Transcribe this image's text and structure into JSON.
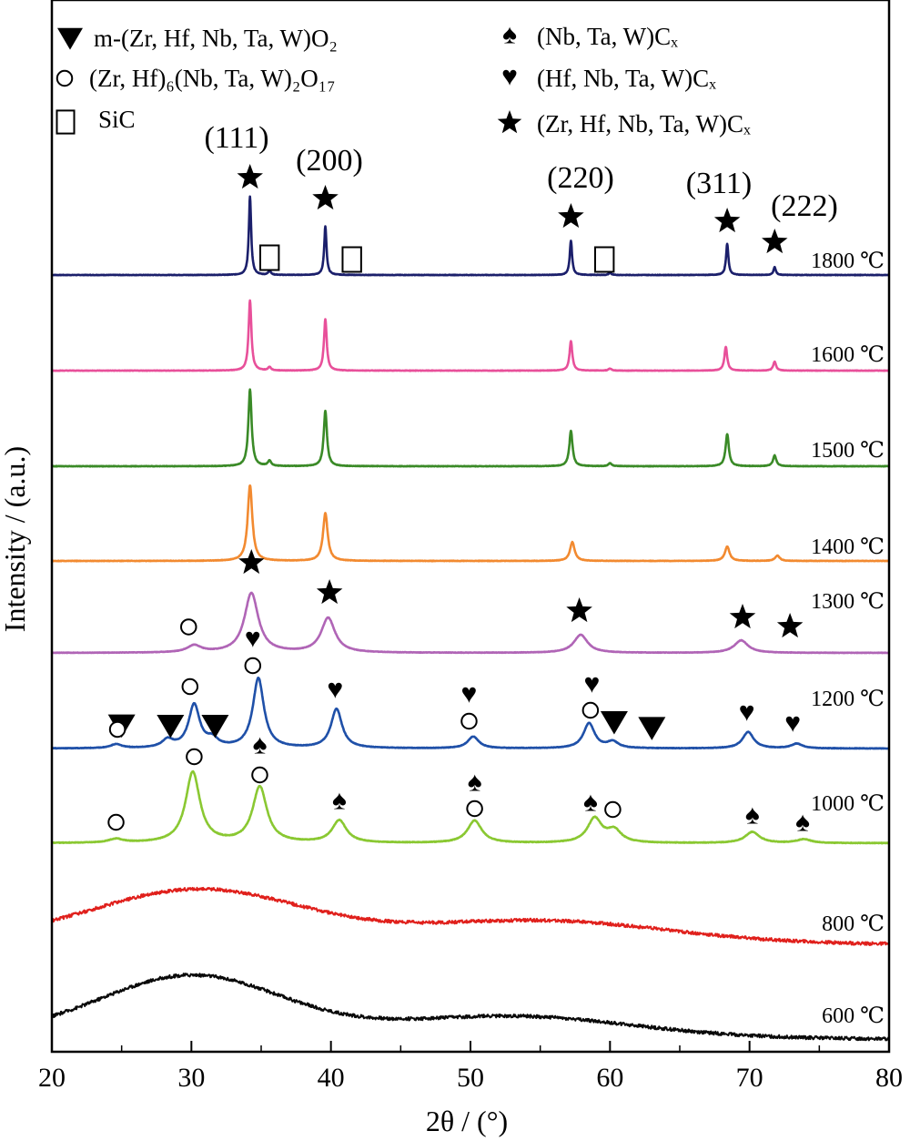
{
  "chart_data": {
    "type": "line",
    "xlabel": "2θ / (°)",
    "ylabel": "Intensity / (a.u.)",
    "xlim": [
      20,
      80
    ],
    "x_ticks": [
      "20",
      "30",
      "40",
      "50",
      "60",
      "70",
      "80"
    ],
    "legend": [
      {
        "symbol": "▼",
        "name": "m-(Zr, Hf, Nb, Ta, W)O₂",
        "shape": "triangle"
      },
      {
        "symbol": "○",
        "name": "(Zr, Hf)₆(Nb, Ta, W)₂O₁₇",
        "shape": "circle"
      },
      {
        "symbol": "□",
        "name": "SiC",
        "shape": "square"
      },
      {
        "symbol": "♠",
        "name": "(Nb, Ta, W)Cₓ",
        "shape": "spade"
      },
      {
        "symbol": "♥",
        "name": "(Hf, Nb, Ta, W)Cₓ",
        "shape": "heart"
      },
      {
        "symbol": "★",
        "name": "(Zr, Hf, Nb, Ta, W)Cₓ",
        "shape": "star"
      }
    ],
    "series": [
      {
        "name": "1800 ℃",
        "color": "#1b1f6b",
        "kind": "crystalline",
        "peaks": [
          [
            34.2,
            1.0
          ],
          [
            35.6,
            0.06
          ],
          [
            39.6,
            0.62
          ],
          [
            57.2,
            0.44
          ],
          [
            60.0,
            0.03
          ],
          [
            68.4,
            0.4
          ],
          [
            71.8,
            0.1
          ]
        ]
      },
      {
        "name": "1600 ℃",
        "color": "#e8509a",
        "kind": "crystalline",
        "peaks": [
          [
            34.2,
            1.0
          ],
          [
            35.6,
            0.05
          ],
          [
            39.6,
            0.73
          ],
          [
            57.2,
            0.42
          ],
          [
            60.0,
            0.03
          ],
          [
            68.3,
            0.34
          ],
          [
            71.8,
            0.13
          ]
        ]
      },
      {
        "name": "1500 ℃",
        "color": "#3a8a27",
        "kind": "crystalline",
        "peaks": [
          [
            34.2,
            1.0
          ],
          [
            35.6,
            0.07
          ],
          [
            39.6,
            0.72
          ],
          [
            57.2,
            0.46
          ],
          [
            60.0,
            0.04
          ],
          [
            68.4,
            0.42
          ],
          [
            71.8,
            0.14
          ]
        ]
      },
      {
        "name": "1400 ℃",
        "color": "#f28a30",
        "kind": "crystalline",
        "peaks": [
          [
            34.2,
            1.0
          ],
          [
            39.6,
            0.63
          ],
          [
            57.3,
            0.25
          ],
          [
            68.4,
            0.19
          ],
          [
            72.0,
            0.07
          ]
        ]
      },
      {
        "name": "1300 ℃",
        "color": "#b065b6",
        "kind": "crystalline",
        "peaks": [
          [
            30.2,
            0.1
          ],
          [
            34.3,
            0.86
          ],
          [
            39.8,
            0.5
          ],
          [
            57.9,
            0.26
          ],
          [
            69.4,
            0.18
          ]
        ]
      },
      {
        "name": "1200 ℃",
        "color": "#1f50a8",
        "kind": "crystalline",
        "peaks": [
          [
            24.6,
            0.05
          ],
          [
            28.3,
            0.1
          ],
          [
            30.2,
            0.55
          ],
          [
            31.5,
            0.1
          ],
          [
            34.8,
            0.89
          ],
          [
            40.4,
            0.5
          ],
          [
            50.2,
            0.15
          ],
          [
            58.5,
            0.32
          ],
          [
            60.2,
            0.08
          ],
          [
            69.9,
            0.21
          ],
          [
            73.4,
            0.06
          ]
        ]
      },
      {
        "name": "1000 ℃",
        "color": "#8ac832",
        "kind": "crystalline",
        "peaks": [
          [
            24.6,
            0.04
          ],
          [
            30.1,
            0.76
          ],
          [
            34.9,
            0.6
          ],
          [
            40.6,
            0.24
          ],
          [
            50.3,
            0.24
          ],
          [
            58.9,
            0.26
          ],
          [
            60.3,
            0.13
          ],
          [
            70.2,
            0.12
          ],
          [
            73.9,
            0.04
          ]
        ]
      },
      {
        "name": "800 ℃",
        "color": "#e0201c",
        "kind": "amorphous",
        "humps": [
          [
            30.5,
            0.7,
            7.5
          ],
          [
            55.0,
            0.3,
            9.0
          ]
        ]
      },
      {
        "name": "600 ℃",
        "color": "#0a0a0a",
        "kind": "amorphous",
        "humps": [
          [
            30.0,
            0.8,
            6.5
          ],
          [
            53.0,
            0.28,
            8.5
          ]
        ]
      }
    ],
    "hkl_labels": [
      {
        "text": "(111)",
        "x": 34.2
      },
      {
        "text": "(200)",
        "x": 39.6
      },
      {
        "text": "(220)",
        "x": 57.2
      },
      {
        "text": "(311)",
        "x": 68.4
      },
      {
        "text": "(222)",
        "x": 71.8
      }
    ],
    "phase_markers": [
      {
        "series": "1800 ℃",
        "shape": "star",
        "x": 34.2
      },
      {
        "series": "1800 ℃",
        "shape": "square",
        "x": 35.6
      },
      {
        "series": "1800 ℃",
        "shape": "star",
        "x": 39.6
      },
      {
        "series": "1800 ℃",
        "shape": "square",
        "x": 41.5
      },
      {
        "series": "1800 ℃",
        "shape": "star",
        "x": 57.2
      },
      {
        "series": "1800 ℃",
        "shape": "square",
        "x": 59.6
      },
      {
        "series": "1800 ℃",
        "shape": "star",
        "x": 68.4
      },
      {
        "series": "1800 ℃",
        "shape": "star",
        "x": 71.8
      },
      {
        "series": "1300 ℃",
        "shape": "star",
        "x": 34.3
      },
      {
        "series": "1300 ℃",
        "shape": "star",
        "x": 39.9
      },
      {
        "series": "1300 ℃",
        "shape": "star",
        "x": 57.8
      },
      {
        "series": "1300 ℃",
        "shape": "star",
        "x": 69.5
      },
      {
        "series": "1300 ℃",
        "shape": "star",
        "x": 72.9
      },
      {
        "series": "1300 ℃",
        "shape": "circle",
        "x": 29.8
      },
      {
        "series": "1200 ℃",
        "shape": "triangle",
        "x": 25.0
      },
      {
        "series": "1200 ℃",
        "shape": "triangle",
        "x": 28.5
      },
      {
        "series": "1200 ℃",
        "shape": "triangle",
        "x": 31.7
      },
      {
        "series": "1200 ℃",
        "shape": "triangle",
        "x": 60.3
      },
      {
        "series": "1200 ℃",
        "shape": "triangle",
        "x": 63.0
      },
      {
        "series": "1200 ℃",
        "shape": "circle",
        "x": 24.7
      },
      {
        "series": "1200 ℃",
        "shape": "circle",
        "x": 29.9
      },
      {
        "series": "1200 ℃",
        "shape": "circle",
        "x": 34.4
      },
      {
        "series": "1200 ℃",
        "shape": "circle",
        "x": 49.9
      },
      {
        "series": "1200 ℃",
        "shape": "circle",
        "x": 58.6
      },
      {
        "series": "1200 ℃",
        "shape": "heart",
        "x": 34.4
      },
      {
        "series": "1200 ℃",
        "shape": "heart",
        "x": 40.3
      },
      {
        "series": "1200 ℃",
        "shape": "heart",
        "x": 49.9
      },
      {
        "series": "1200 ℃",
        "shape": "heart",
        "x": 58.7
      },
      {
        "series": "1200 ℃",
        "shape": "heart",
        "x": 69.8
      },
      {
        "series": "1200 ℃",
        "shape": "heart",
        "x": 73.1
      },
      {
        "series": "1000 ℃",
        "shape": "circle",
        "x": 24.6
      },
      {
        "series": "1000 ℃",
        "shape": "circle",
        "x": 30.2
      },
      {
        "series": "1000 ℃",
        "shape": "circle",
        "x": 34.9
      },
      {
        "series": "1000 ℃",
        "shape": "circle",
        "x": 50.3
      },
      {
        "series": "1000 ℃",
        "shape": "circle",
        "x": 60.2
      },
      {
        "series": "1000 ℃",
        "shape": "spade",
        "x": 34.9
      },
      {
        "series": "1000 ℃",
        "shape": "spade",
        "x": 40.6
      },
      {
        "series": "1000 ℃",
        "shape": "spade",
        "x": 50.3
      },
      {
        "series": "1000 ℃",
        "shape": "spade",
        "x": 58.6
      },
      {
        "series": "1000 ℃",
        "shape": "spade",
        "x": 70.2
      },
      {
        "series": "1000 ℃",
        "shape": "spade",
        "x": 73.8
      }
    ]
  }
}
